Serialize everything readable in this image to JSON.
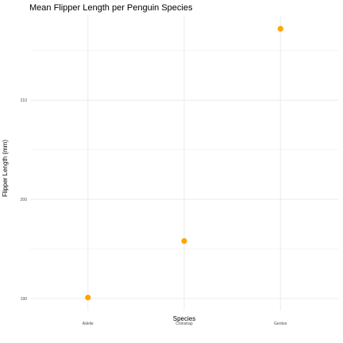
{
  "chart_data": {
    "type": "scatter",
    "title": "Mean Flipper Length per Penguin Species",
    "xlabel": "Species",
    "ylabel": "Flipper Length (mm)",
    "categories": [
      "Adelie",
      "Chinstrap",
      "Gentoo"
    ],
    "values": [
      190.1,
      195.8,
      217.2
    ],
    "yticks": [
      190,
      200,
      210
    ],
    "ylim": [
      188.8,
      218.5
    ],
    "grid": true,
    "legend": "none",
    "colors": {
      "point": "#FFA500",
      "grid": "#ebebeb",
      "tick_label": "#4d4d4d",
      "text": "#000000"
    }
  }
}
